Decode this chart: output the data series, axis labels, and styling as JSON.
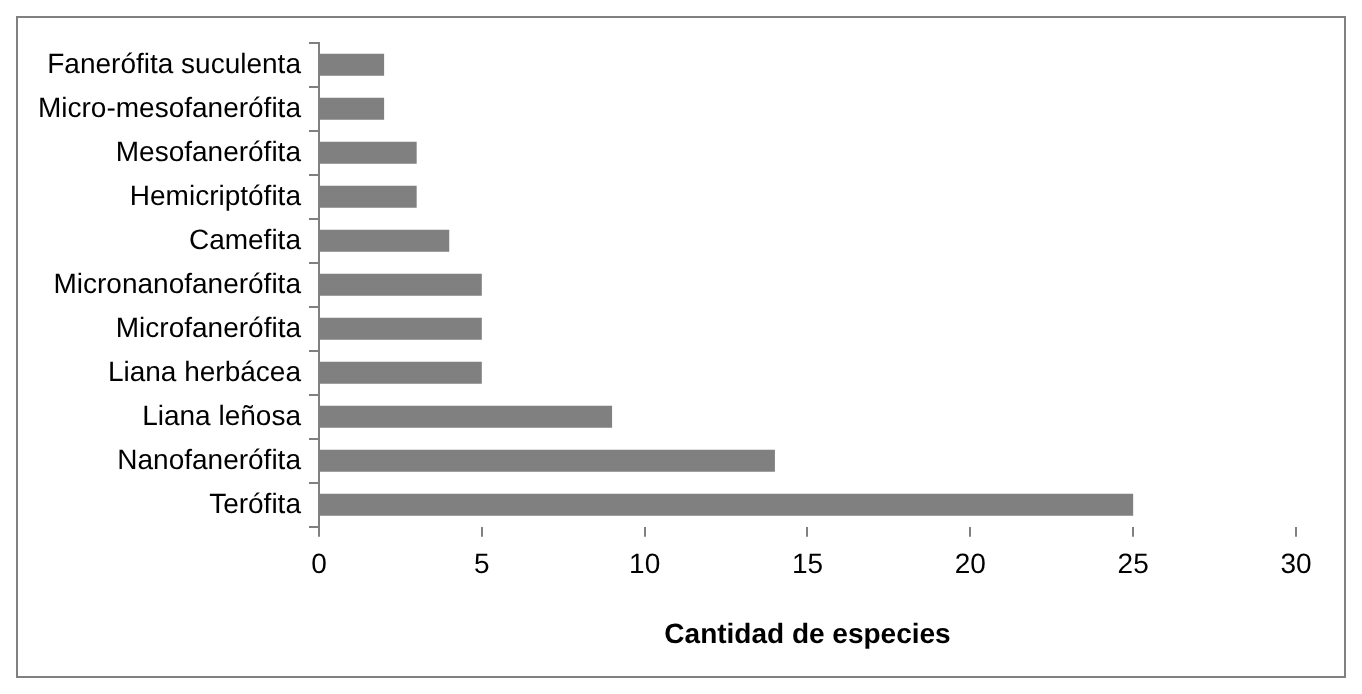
{
  "chart_data": {
    "type": "bar",
    "orientation": "horizontal",
    "xlabel": "Cantidad de especies",
    "categories": [
      "Fanerófita suculenta",
      "Micro-mesofanerófita",
      "Mesofanerófita",
      "Hemicriptófita",
      "Camefita",
      "Micronanofanerófita",
      "Microfanerófita",
      "Liana herbácea",
      "Liana leñosa",
      "Nanofanerófita",
      "Terófita"
    ],
    "values": [
      2,
      2,
      3,
      3,
      4,
      5,
      5,
      5,
      9,
      14,
      25
    ],
    "color": "#808080",
    "xlim": [
      0,
      30
    ],
    "xticks": [
      0,
      5,
      10,
      15,
      20,
      25,
      30
    ],
    "grid": false,
    "legend": false
  }
}
